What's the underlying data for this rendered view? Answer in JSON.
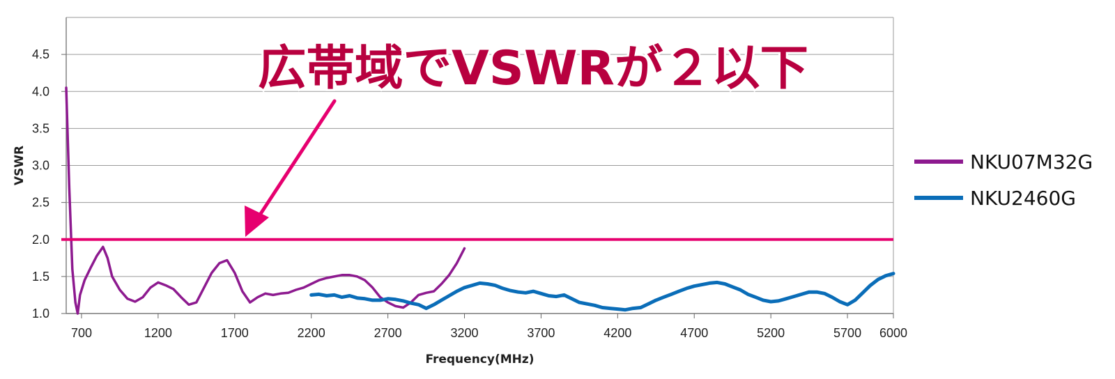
{
  "chart_data": {
    "type": "line",
    "title": "",
    "xlabel": "Frequency(MHz)",
    "ylabel": "VSWR",
    "xlim": [
      600,
      6000
    ],
    "ylim": [
      1.0,
      5.0
    ],
    "x_ticks": [
      "700",
      "1200",
      "1700",
      "2200",
      "2700",
      "3200",
      "3700",
      "4200",
      "4700",
      "5200",
      "5700",
      "6000"
    ],
    "y_ticks": [
      "1.0",
      "1.5",
      "2.0",
      "2.5",
      "3.0",
      "3.5",
      "4.0",
      "4.5"
    ],
    "grid": "horizontal",
    "legend_position": "right",
    "reference_line": {
      "y": 2.0,
      "color": "#e6006f"
    },
    "annotation": {
      "text": "広帯域でVSWRが２以下",
      "color": "#b8003f",
      "outline_color": "#ffffff",
      "arrow_color": "#e6006f"
    },
    "series": [
      {
        "name": "NKU07M32G",
        "color": "#8d1a8f",
        "points": [
          [
            600,
            4.05
          ],
          [
            620,
            2.7
          ],
          [
            640,
            1.6
          ],
          [
            660,
            1.15
          ],
          [
            675,
            1.0
          ],
          [
            690,
            1.25
          ],
          [
            720,
            1.45
          ],
          [
            760,
            1.62
          ],
          [
            800,
            1.78
          ],
          [
            840,
            1.9
          ],
          [
            870,
            1.75
          ],
          [
            900,
            1.5
          ],
          [
            950,
            1.32
          ],
          [
            1000,
            1.2
          ],
          [
            1050,
            1.16
          ],
          [
            1100,
            1.22
          ],
          [
            1150,
            1.35
          ],
          [
            1200,
            1.42
          ],
          [
            1250,
            1.38
          ],
          [
            1300,
            1.33
          ],
          [
            1350,
            1.22
          ],
          [
            1400,
            1.12
          ],
          [
            1450,
            1.15
          ],
          [
            1500,
            1.35
          ],
          [
            1550,
            1.55
          ],
          [
            1600,
            1.68
          ],
          [
            1650,
            1.72
          ],
          [
            1700,
            1.55
          ],
          [
            1750,
            1.3
          ],
          [
            1800,
            1.15
          ],
          [
            1850,
            1.22
          ],
          [
            1900,
            1.27
          ],
          [
            1950,
            1.25
          ],
          [
            2000,
            1.27
          ],
          [
            2050,
            1.28
          ],
          [
            2100,
            1.32
          ],
          [
            2150,
            1.35
          ],
          [
            2200,
            1.4
          ],
          [
            2250,
            1.45
          ],
          [
            2300,
            1.48
          ],
          [
            2350,
            1.5
          ],
          [
            2400,
            1.52
          ],
          [
            2450,
            1.52
          ],
          [
            2500,
            1.5
          ],
          [
            2550,
            1.45
          ],
          [
            2600,
            1.35
          ],
          [
            2650,
            1.22
          ],
          [
            2700,
            1.15
          ],
          [
            2750,
            1.1
          ],
          [
            2800,
            1.08
          ],
          [
            2850,
            1.15
          ],
          [
            2900,
            1.25
          ],
          [
            2950,
            1.28
          ],
          [
            3000,
            1.3
          ],
          [
            3050,
            1.4
          ],
          [
            3100,
            1.52
          ],
          [
            3150,
            1.68
          ],
          [
            3200,
            1.88
          ]
        ]
      },
      {
        "name": "NKU2460G",
        "color": "#0a6db8",
        "points": [
          [
            2200,
            1.25
          ],
          [
            2250,
            1.26
          ],
          [
            2300,
            1.24
          ],
          [
            2350,
            1.25
          ],
          [
            2400,
            1.22
          ],
          [
            2450,
            1.24
          ],
          [
            2500,
            1.21
          ],
          [
            2550,
            1.2
          ],
          [
            2600,
            1.18
          ],
          [
            2650,
            1.18
          ],
          [
            2700,
            1.2
          ],
          [
            2750,
            1.19
          ],
          [
            2800,
            1.17
          ],
          [
            2850,
            1.14
          ],
          [
            2900,
            1.12
          ],
          [
            2950,
            1.07
          ],
          [
            3000,
            1.12
          ],
          [
            3050,
            1.18
          ],
          [
            3100,
            1.24
          ],
          [
            3150,
            1.3
          ],
          [
            3200,
            1.35
          ],
          [
            3250,
            1.38
          ],
          [
            3300,
            1.41
          ],
          [
            3350,
            1.4
          ],
          [
            3400,
            1.38
          ],
          [
            3450,
            1.34
          ],
          [
            3500,
            1.31
          ],
          [
            3550,
            1.29
          ],
          [
            3600,
            1.28
          ],
          [
            3650,
            1.3
          ],
          [
            3700,
            1.27
          ],
          [
            3750,
            1.24
          ],
          [
            3800,
            1.23
          ],
          [
            3850,
            1.25
          ],
          [
            3900,
            1.2
          ],
          [
            3950,
            1.15
          ],
          [
            4000,
            1.13
          ],
          [
            4050,
            1.11
          ],
          [
            4100,
            1.08
          ],
          [
            4150,
            1.07
          ],
          [
            4200,
            1.06
          ],
          [
            4250,
            1.05
          ],
          [
            4300,
            1.07
          ],
          [
            4350,
            1.08
          ],
          [
            4400,
            1.13
          ],
          [
            4450,
            1.18
          ],
          [
            4500,
            1.22
          ],
          [
            4550,
            1.26
          ],
          [
            4600,
            1.3
          ],
          [
            4650,
            1.34
          ],
          [
            4700,
            1.37
          ],
          [
            4750,
            1.39
          ],
          [
            4800,
            1.41
          ],
          [
            4850,
            1.42
          ],
          [
            4900,
            1.4
          ],
          [
            4950,
            1.36
          ],
          [
            5000,
            1.32
          ],
          [
            5050,
            1.26
          ],
          [
            5100,
            1.22
          ],
          [
            5150,
            1.18
          ],
          [
            5200,
            1.16
          ],
          [
            5250,
            1.17
          ],
          [
            5300,
            1.2
          ],
          [
            5350,
            1.23
          ],
          [
            5400,
            1.26
          ],
          [
            5450,
            1.29
          ],
          [
            5500,
            1.29
          ],
          [
            5550,
            1.27
          ],
          [
            5600,
            1.22
          ],
          [
            5650,
            1.16
          ],
          [
            5700,
            1.12
          ],
          [
            5750,
            1.18
          ],
          [
            5800,
            1.28
          ],
          [
            5850,
            1.38
          ],
          [
            5900,
            1.46
          ],
          [
            5950,
            1.51
          ],
          [
            6000,
            1.54
          ]
        ]
      }
    ]
  }
}
